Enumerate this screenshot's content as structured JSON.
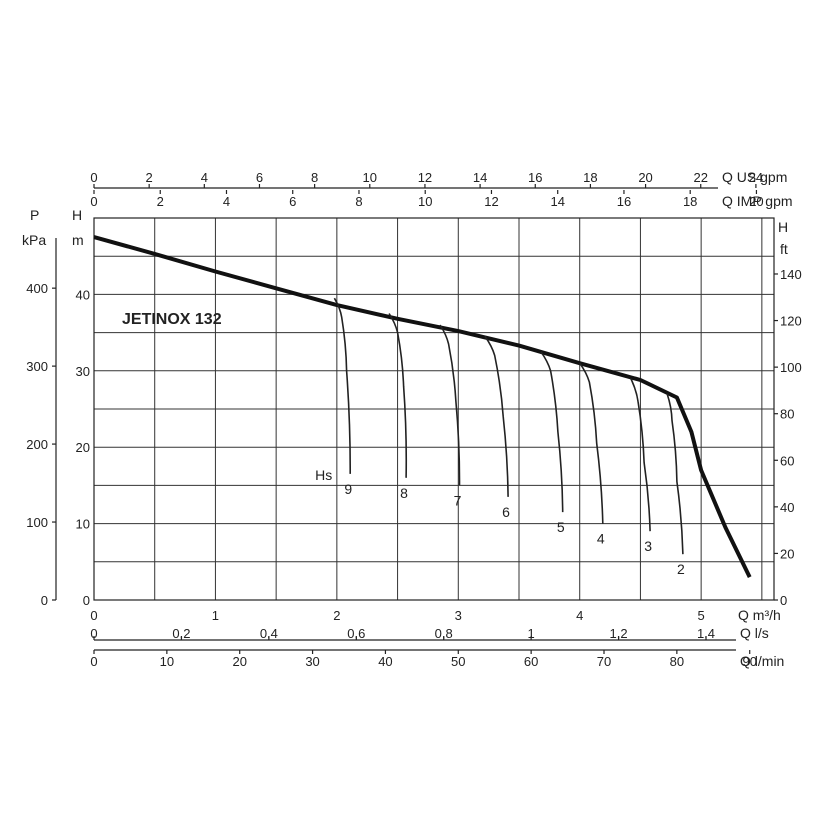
{
  "chart_data": {
    "type": "line",
    "title": "JETINOX 132",
    "grid": true,
    "axes": {
      "x_m3h": {
        "unit": "Q m³/h",
        "range": [
          0,
          5.6
        ],
        "ticks": [
          "0",
          "1",
          "2",
          "3",
          "4",
          "5"
        ]
      },
      "x_ls": {
        "unit": "Q l/s",
        "range": [
          0,
          1.5556
        ],
        "ticks": [
          "0",
          "0,2",
          "0,4",
          "0,6",
          "0,8",
          "1",
          "1,2",
          "1,4"
        ]
      },
      "x_lmin": {
        "unit": "Q l/min",
        "range": [
          0,
          93.33
        ],
        "ticks": [
          "0",
          "10",
          "20",
          "30",
          "40",
          "50",
          "60",
          "70",
          "80",
          "90"
        ]
      },
      "x_usgpm": {
        "unit": "Q US gpm",
        "range": [
          0,
          24.66
        ],
        "ticks": [
          "0",
          "2",
          "4",
          "6",
          "8",
          "10",
          "12",
          "14",
          "16",
          "18",
          "20",
          "22",
          "24"
        ]
      },
      "x_impgpm": {
        "unit": "Q IMP gpm",
        "range": [
          0,
          20.53
        ],
        "ticks": [
          "0",
          "2",
          "4",
          "6",
          "8",
          "10",
          "12",
          "14",
          "16",
          "18",
          "20"
        ]
      },
      "y_m": {
        "unit_top": "H",
        "unit_bottom": "m",
        "range": [
          0,
          50
        ],
        "ticks": [
          "0",
          "10",
          "20",
          "30",
          "40"
        ]
      },
      "y_kpa": {
        "unit_top": "P",
        "unit_bottom": "kPa",
        "range": [
          0,
          490
        ],
        "ticks": [
          "0",
          "100",
          "200",
          "300",
          "400"
        ]
      },
      "y_ft": {
        "unit_top": "H",
        "unit_bottom": "ft",
        "range": [
          0,
          164
        ],
        "ticks": [
          "0",
          "20",
          "40",
          "60",
          "80",
          "100",
          "120",
          "140"
        ]
      }
    },
    "main_curve": {
      "x_m3h": [
        0,
        0.5,
        1.0,
        1.5,
        2.0,
        2.5,
        3.0,
        3.5,
        4.0,
        4.5,
        4.8,
        4.92,
        5.0,
        5.2,
        5.4
      ],
      "H_m": [
        47.5,
        45.3,
        43.0,
        40.8,
        38.6,
        36.8,
        35.2,
        33.3,
        31.0,
        28.8,
        26.5,
        22.0,
        17.0,
        9.5,
        3.0
      ]
    },
    "suction_curves": {
      "label_prefix": "Hs",
      "curves": [
        {
          "label": "9",
          "x_m3h": [
            1.98,
            2.04,
            2.08,
            2.11
          ],
          "H_m": [
            39.5,
            37.0,
            30.0,
            16.5
          ]
        },
        {
          "label": "8",
          "x_m3h": [
            2.43,
            2.5,
            2.55,
            2.57
          ],
          "H_m": [
            37.5,
            35.0,
            28.0,
            16.0
          ]
        },
        {
          "label": "7",
          "x_m3h": [
            2.85,
            2.92,
            2.98,
            3.01
          ],
          "H_m": [
            36.0,
            33.5,
            26.0,
            15.0
          ]
        },
        {
          "label": "6",
          "x_m3h": [
            3.22,
            3.3,
            3.37,
            3.41
          ],
          "H_m": [
            34.5,
            32.0,
            24.0,
            13.5
          ]
        },
        {
          "label": "5",
          "x_m3h": [
            3.68,
            3.76,
            3.82,
            3.86
          ],
          "H_m": [
            32.5,
            30.0,
            22.0,
            11.5
          ]
        },
        {
          "label": "4",
          "x_m3h": [
            4.0,
            4.08,
            4.14,
            4.19
          ],
          "H_m": [
            31.0,
            28.5,
            20.5,
            10.0
          ]
        },
        {
          "label": "3",
          "x_m3h": [
            4.42,
            4.48,
            4.53,
            4.58
          ],
          "H_m": [
            29.0,
            26.0,
            18.0,
            9.0
          ]
        },
        {
          "label": "2",
          "x_m3h": [
            4.72,
            4.76,
            4.8,
            4.85
          ],
          "H_m": [
            27.0,
            23.5,
            15.5,
            6.0
          ]
        }
      ]
    }
  }
}
